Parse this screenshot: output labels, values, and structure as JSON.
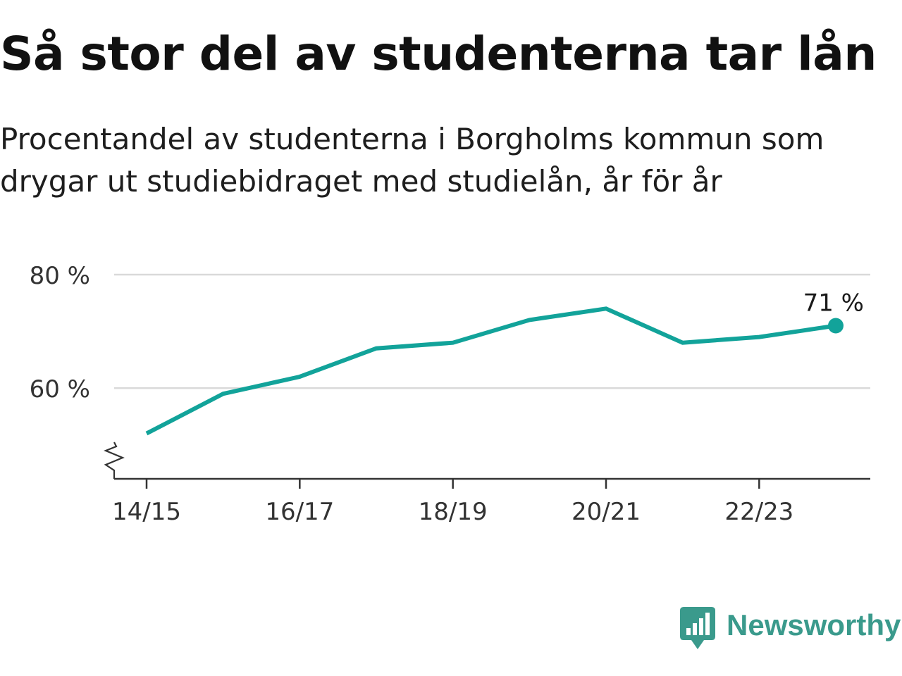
{
  "title": "Så stor del av studenterna tar lån",
  "subtitle": "Procentandel av studenterna i Borgholms kommun som drygar ut studiebidraget med studielån, år för år",
  "brand": {
    "name": "Newsworthy",
    "icon": "newsworthy-bar-chart-logo",
    "color": "#3a9a8c"
  },
  "chart_data": {
    "type": "line",
    "x": [
      "14/15",
      "15/16",
      "16/17",
      "17/18",
      "18/19",
      "19/20",
      "20/21",
      "21/22",
      "22/23",
      "23/24"
    ],
    "series": [
      {
        "values": [
          52,
          59,
          62,
          67,
          68,
          72,
          74,
          68,
          69,
          71
        ]
      }
    ],
    "xticks": [
      "14/15",
      "16/17",
      "18/19",
      "20/21",
      "22/23"
    ],
    "yticks": [
      60,
      80
    ],
    "ytick_labels": [
      "60 %",
      "80 %"
    ],
    "ylim": [
      44,
      80
    ],
    "y_axis_break": true,
    "grid": "horizontal",
    "end_label": "71 %",
    "color": "#12a39a",
    "grid_color": "#d9d9d9",
    "axis_color": "#333333"
  }
}
